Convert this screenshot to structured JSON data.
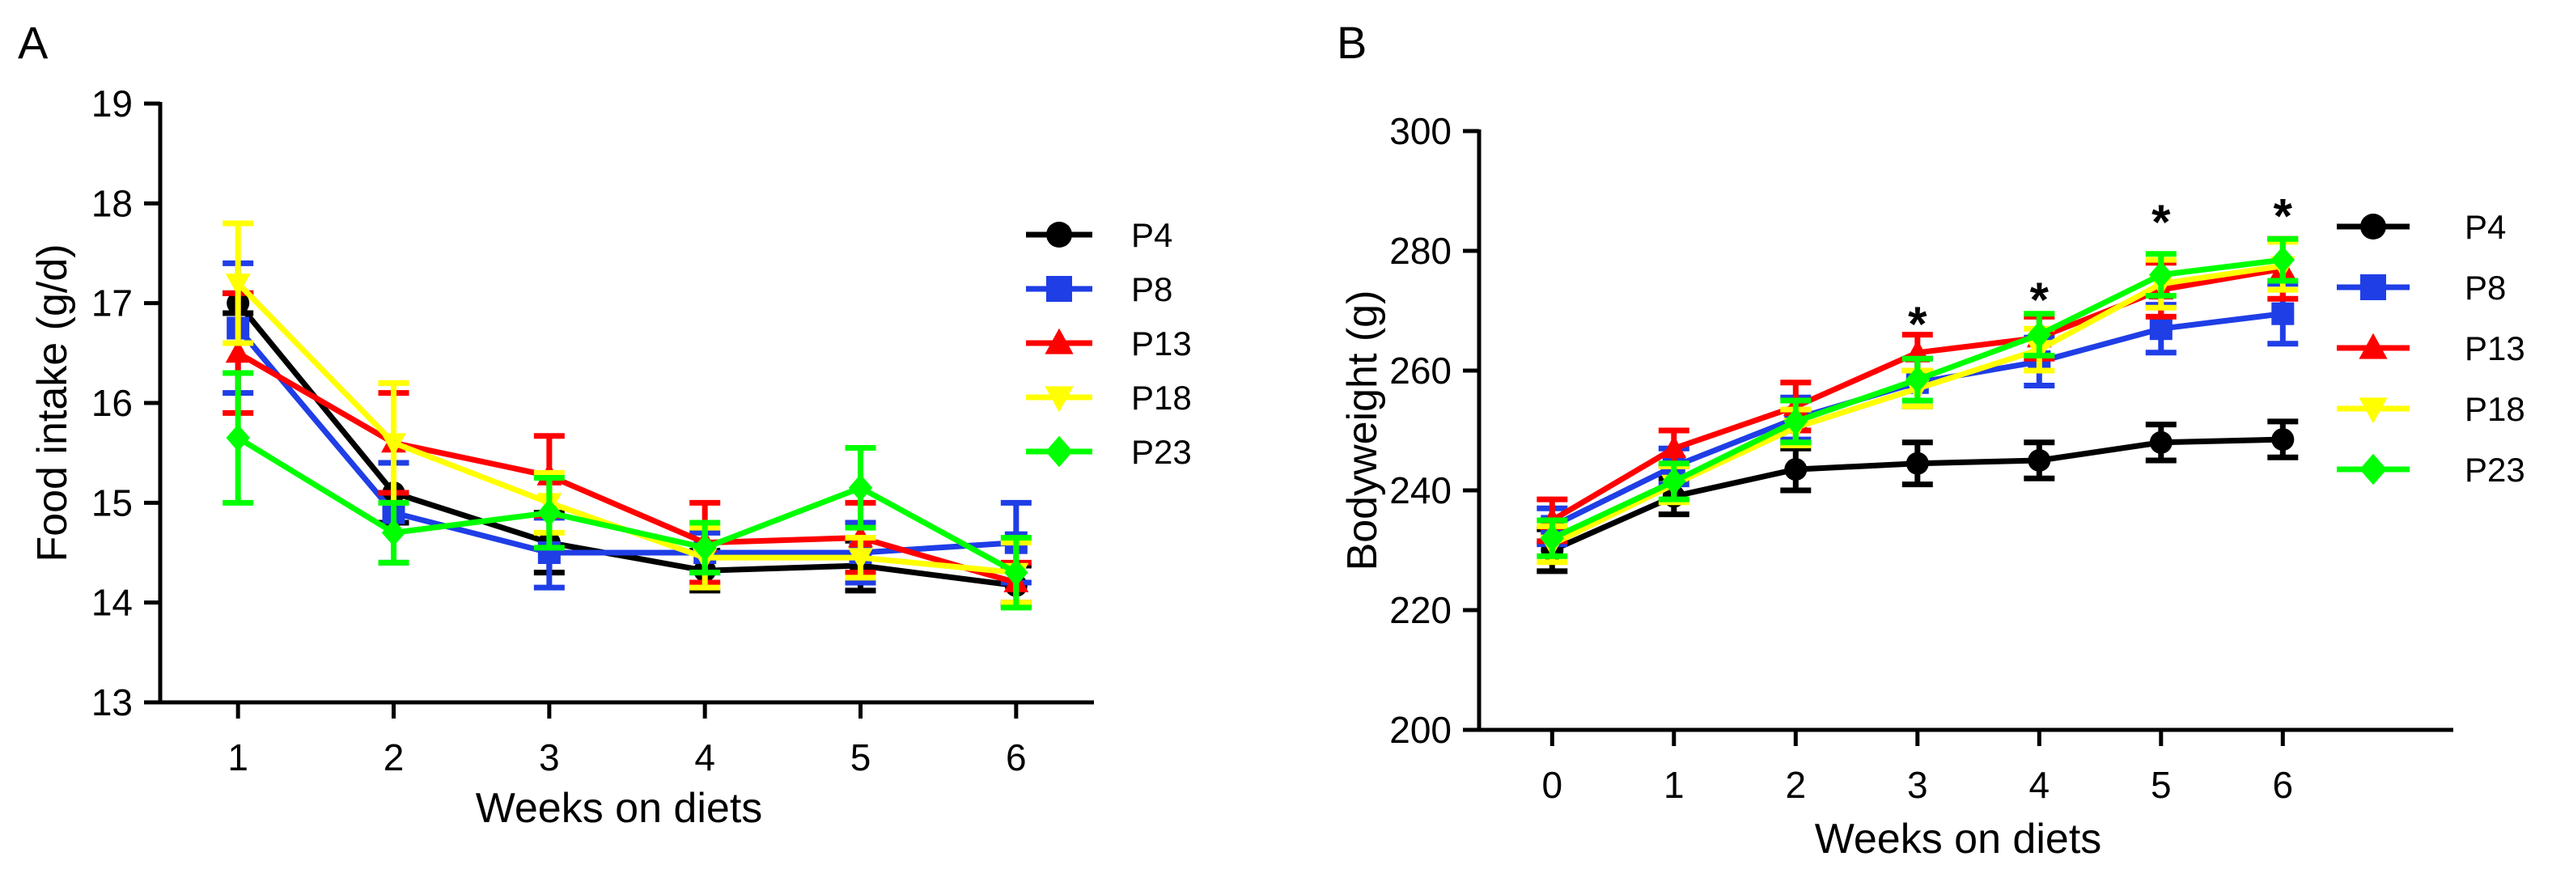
{
  "chart_data": [
    {
      "type": "line",
      "panel_label": "A",
      "xlabel": "Weeks on diets",
      "ylabel": "Food intake (g/d)",
      "x": [
        1,
        2,
        3,
        4,
        5,
        6
      ],
      "xticks": [
        1,
        2,
        3,
        4,
        5,
        6
      ],
      "xlim": [
        0.5,
        6.5
      ],
      "ylim": [
        13,
        19
      ],
      "yticks": [
        13,
        14,
        15,
        16,
        17,
        18,
        19
      ],
      "grid": false,
      "legend_position": "right",
      "series": [
        {
          "name": "P4",
          "color": "#000000",
          "marker": "circle",
          "values": [
            17.0,
            15.1,
            14.6,
            14.32,
            14.37,
            14.17
          ],
          "errors": [
            0.1,
            0.3,
            0.3,
            0.2,
            0.25,
            0.2
          ]
        },
        {
          "name": "P8",
          "color": "#1f3ee6",
          "marker": "square",
          "values": [
            16.75,
            14.9,
            14.5,
            14.5,
            14.5,
            14.6
          ],
          "errors": [
            0.65,
            0.5,
            0.35,
            0.2,
            0.3,
            0.4
          ]
        },
        {
          "name": "P13",
          "color": "#ff0000",
          "marker": "triangle-up",
          "values": [
            16.5,
            15.6,
            15.27,
            14.6,
            14.65,
            14.2
          ],
          "errors": [
            0.6,
            0.5,
            0.4,
            0.4,
            0.35,
            0.2
          ]
        },
        {
          "name": "P18",
          "color": "#ffff00",
          "marker": "triangle-down",
          "values": [
            17.2,
            15.6,
            15.0,
            14.45,
            14.45,
            14.3
          ],
          "errors": [
            0.6,
            0.6,
            0.3,
            0.3,
            0.2,
            0.3
          ]
        },
        {
          "name": "P23",
          "color": "#00ff00",
          "marker": "diamond",
          "values": [
            15.65,
            14.7,
            14.9,
            14.55,
            15.15,
            14.3
          ],
          "errors": [
            0.65,
            0.3,
            0.35,
            0.25,
            0.4,
            0.35
          ]
        }
      ]
    },
    {
      "type": "line",
      "panel_label": "B",
      "xlabel": "Weeks on diets",
      "ylabel": "Bodyweight (g)",
      "x": [
        0,
        1,
        2,
        3,
        4,
        5,
        6
      ],
      "xticks": [
        0,
        1,
        2,
        3,
        4,
        5,
        6
      ],
      "xlim": [
        -0.6,
        7.4
      ],
      "ylim": [
        200,
        300
      ],
      "yticks": [
        200,
        220,
        240,
        260,
        280,
        300
      ],
      "grid": false,
      "legend_position": "right",
      "annotations": [
        {
          "text": "*",
          "x": 3,
          "y": 268
        },
        {
          "text": "*",
          "x": 4,
          "y": 272
        },
        {
          "text": "*",
          "x": 5,
          "y": 285
        },
        {
          "text": "*",
          "x": 6,
          "y": 286
        }
      ],
      "series": [
        {
          "name": "P4",
          "color": "#000000",
          "marker": "circle",
          "values": [
            230,
            239,
            243.5,
            244.5,
            245,
            248,
            248.5
          ],
          "errors": [
            3.5,
            3,
            3.5,
            3.5,
            3,
            3,
            3
          ]
        },
        {
          "name": "P8",
          "color": "#1f3ee6",
          "marker": "square",
          "values": [
            234,
            244,
            252,
            258,
            261.5,
            267,
            269.5
          ],
          "errors": [
            3,
            3,
            3.5,
            4,
            4,
            4,
            5
          ]
        },
        {
          "name": "P13",
          "color": "#ff0000",
          "marker": "triangle-up",
          "values": [
            235,
            247,
            254,
            263,
            265.5,
            273.5,
            277
          ],
          "errors": [
            3.5,
            3,
            4,
            3,
            3.5,
            4.5,
            5
          ]
        },
        {
          "name": "P18",
          "color": "#ffff00",
          "marker": "triangle-down",
          "values": [
            231,
            241,
            250.5,
            257,
            263.5,
            274.5,
            277.5
          ],
          "errors": [
            3,
            3,
            3,
            3,
            3.5,
            4,
            4
          ]
        },
        {
          "name": "P23",
          "color": "#00ff00",
          "marker": "diamond",
          "values": [
            232,
            241.5,
            251.5,
            258.5,
            266,
            276,
            278.5
          ],
          "errors": [
            3,
            3,
            3.5,
            3.5,
            3.5,
            3.5,
            3.5
          ]
        }
      ]
    }
  ]
}
